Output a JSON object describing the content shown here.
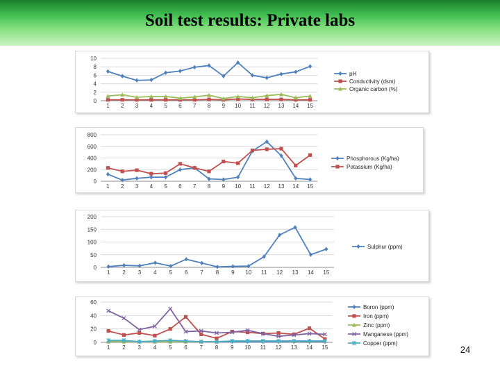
{
  "slide": {
    "title": "Soil test results: Private labs",
    "number": "24"
  },
  "colors": {
    "blue": "#4f81bd",
    "red": "#c0504d",
    "green": "#9bbb59",
    "purple": "#8064a2",
    "teal": "#4bacc6",
    "banner": "#3dba4f"
  },
  "chart_data": [
    {
      "type": "line",
      "x": [
        1,
        2,
        3,
        4,
        5,
        6,
        7,
        8,
        9,
        10,
        11,
        12,
        13,
        14,
        15
      ],
      "xticks": [
        "1",
        "2",
        "3",
        "4",
        "5",
        "6",
        "7",
        "8",
        "9",
        "10",
        "11",
        "12",
        "13",
        "14",
        "15"
      ],
      "ylim": [
        0,
        10
      ],
      "yticks": [
        0,
        2,
        4,
        6,
        8,
        10
      ],
      "grid": true,
      "legend": "right",
      "series": [
        {
          "name": "pH",
          "color": "#4f81bd",
          "marker": "diamond",
          "values": [
            6.9,
            5.8,
            4.8,
            4.9,
            6.6,
            7.0,
            7.9,
            8.3,
            5.8,
            9.0,
            6.0,
            5.4,
            6.3,
            6.8,
            8.1
          ]
        },
        {
          "name": "Conductivity (dsm)",
          "color": "#c0504d",
          "marker": "square",
          "values": [
            0.2,
            0.2,
            0.2,
            0.2,
            0.2,
            0.2,
            0.2,
            0.3,
            0.2,
            0.4,
            0.3,
            0.3,
            0.3,
            0.2,
            0.2
          ]
        },
        {
          "name": "Organic carbon  (%)",
          "color": "#9bbb59",
          "marker": "triangle",
          "values": [
            1.1,
            1.4,
            0.8,
            1.0,
            1.0,
            0.6,
            0.9,
            1.3,
            0.5,
            1.0,
            0.7,
            1.2,
            1.5,
            0.7,
            1.1
          ]
        }
      ]
    },
    {
      "type": "line",
      "x": [
        1,
        2,
        3,
        4,
        5,
        6,
        7,
        8,
        9,
        10,
        11,
        12,
        13,
        14,
        15
      ],
      "xticks": [
        "1",
        "2",
        "3",
        "4",
        "5",
        "6",
        "7",
        "8",
        "9",
        "10",
        "11",
        "12",
        "13",
        "14",
        "15"
      ],
      "ylim": [
        0,
        800
      ],
      "yticks": [
        0,
        200,
        400,
        600,
        800
      ],
      "grid": true,
      "legend": "right",
      "series": [
        {
          "name": "Phosphorous (Kg/ha)",
          "color": "#4f81bd",
          "marker": "diamond",
          "values": [
            120,
            20,
            50,
            70,
            70,
            200,
            230,
            40,
            30,
            70,
            520,
            680,
            440,
            50,
            30
          ]
        },
        {
          "name": "Potassium (Kg/ha)",
          "color": "#c0504d",
          "marker": "square",
          "values": [
            230,
            170,
            190,
            130,
            140,
            300,
            230,
            170,
            340,
            310,
            530,
            550,
            560,
            270,
            450
          ]
        }
      ]
    },
    {
      "type": "line",
      "x": [
        1,
        2,
        3,
        4,
        5,
        6,
        7,
        8,
        9,
        10,
        11,
        12,
        13,
        14,
        15
      ],
      "xticks": [
        "1",
        "2",
        "3",
        "4",
        "5",
        "6",
        "7",
        "8",
        "9",
        "10",
        "11",
        "12",
        "13",
        "14",
        "15"
      ],
      "ylim": [
        0,
        200
      ],
      "yticks": [
        0,
        50,
        100,
        150,
        200
      ],
      "grid": true,
      "legend": "right",
      "series": [
        {
          "name": "Sulphur (ppm)",
          "color": "#4f81bd",
          "marker": "diamond",
          "values": [
            3,
            8,
            6,
            18,
            5,
            32,
            17,
            2,
            4,
            5,
            42,
            128,
            158,
            50,
            72
          ]
        }
      ]
    },
    {
      "type": "line",
      "x": [
        1,
        2,
        3,
        4,
        5,
        6,
        7,
        8,
        9,
        10,
        11,
        12,
        13,
        14,
        15
      ],
      "xticks": [
        "1",
        "2",
        "3",
        "4",
        "5",
        "6",
        "7",
        "8",
        "9",
        "10",
        "11",
        "12",
        "13",
        "14",
        "15"
      ],
      "ylim": [
        0,
        60
      ],
      "yticks": [
        0,
        20,
        40,
        60
      ],
      "grid": true,
      "legend": "right",
      "series": [
        {
          "name": "Boron (ppm)",
          "color": "#4f81bd",
          "marker": "diamond",
          "values": [
            1,
            1,
            1,
            1,
            1,
            1,
            1,
            1,
            1,
            1,
            1,
            1,
            1,
            1,
            1
          ]
        },
        {
          "name": "Iron (ppm)",
          "color": "#c0504d",
          "marker": "square",
          "values": [
            17,
            11,
            14,
            10,
            20,
            38,
            12,
            6,
            16,
            15,
            13,
            14,
            12,
            21,
            5
          ]
        },
        {
          "name": "Zinc (ppm)",
          "color": "#9bbb59",
          "marker": "triangle",
          "values": [
            1,
            1,
            1,
            1,
            1,
            1,
            1,
            1,
            2,
            2,
            2,
            2,
            2,
            2,
            2
          ]
        },
        {
          "name": "Manganese (ppm)",
          "color": "#8064a2",
          "marker": "x",
          "values": [
            47,
            36,
            19,
            24,
            50,
            16,
            17,
            14,
            15,
            18,
            13,
            9,
            11,
            13,
            12
          ]
        },
        {
          "name": "Copper (ppm)",
          "color": "#4bacc6",
          "marker": "star",
          "values": [
            3,
            3,
            1,
            2,
            3,
            2,
            1,
            1,
            2,
            2,
            2,
            2,
            2,
            2,
            2
          ]
        }
      ]
    }
  ]
}
